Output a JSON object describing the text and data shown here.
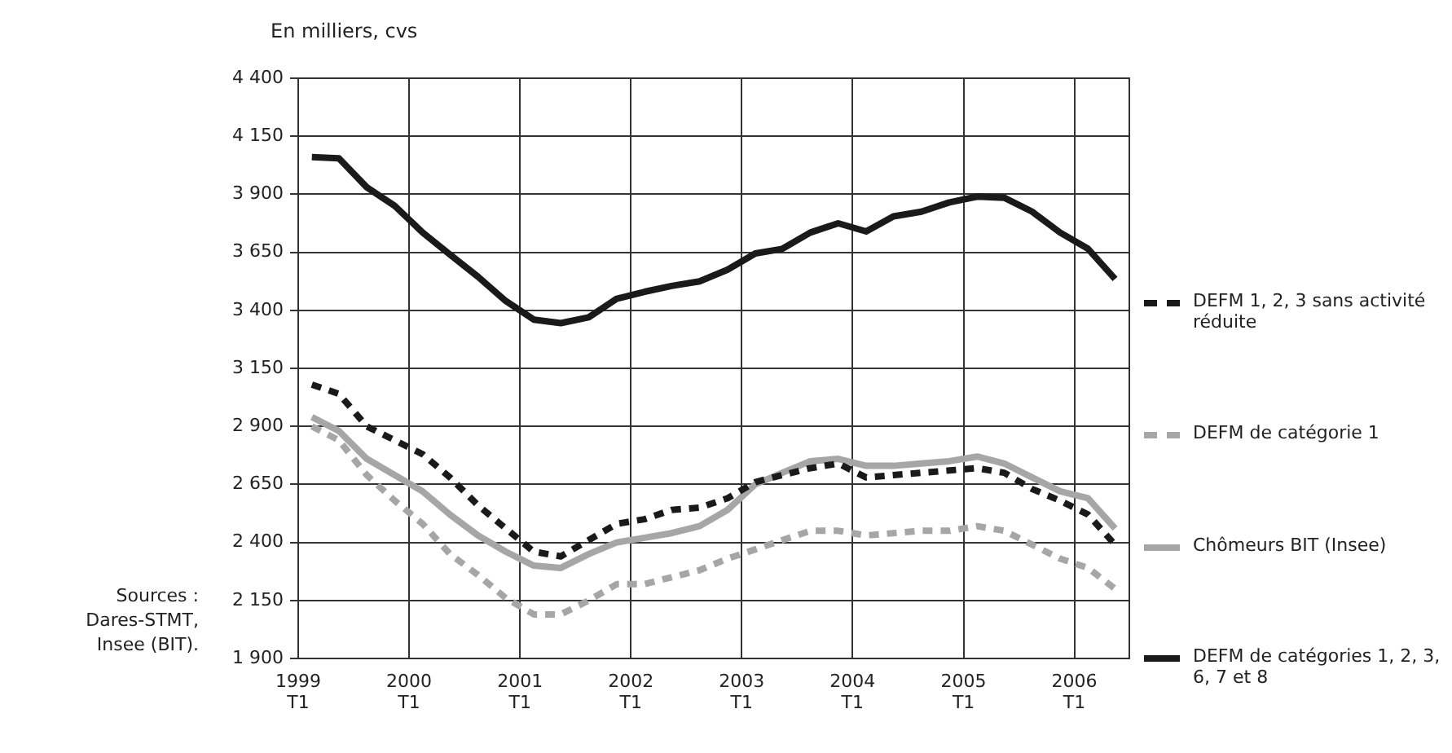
{
  "chart_data": {
    "type": "line",
    "ylabel": "En milliers, cvs",
    "x": [
      "1999-02-15",
      "1999-05-15",
      "1999-08-15",
      "1999-11-15",
      "2000-02-15",
      "2000-05-15",
      "2000-08-15",
      "2000-11-15",
      "2001-02-15",
      "2001-05-15",
      "2001-08-15",
      "2001-11-15",
      "2002-02-15",
      "2002-05-15",
      "2002-08-15",
      "2002-11-15",
      "2003-02-15",
      "2003-05-15",
      "2003-08-15",
      "2003-11-15",
      "2004-02-15",
      "2004-05-15",
      "2004-08-15",
      "2004-11-15",
      "2005-02-15",
      "2005-05-15",
      "2005-08-15",
      "2005-11-15",
      "2006-02-15",
      "2006-05-15"
    ],
    "xlim": [
      "1999-01-01",
      "2006-07-01"
    ],
    "xticks": [
      {
        "value": "1999-01-01",
        "label": "1999 T1"
      },
      {
        "value": "2000-01-01",
        "label": "2000 T1"
      },
      {
        "value": "2001-01-01",
        "label": "2001 T1"
      },
      {
        "value": "2002-01-01",
        "label": "2002 T1"
      },
      {
        "value": "2003-01-01",
        "label": "2003 T1"
      },
      {
        "value": "2004-01-01",
        "label": "2004 T1"
      },
      {
        "value": "2005-01-01",
        "label": "2005 T1"
      },
      {
        "value": "2006-01-01",
        "label": "2006 T1"
      }
    ],
    "ylim": [
      1900,
      4400
    ],
    "yticks": [
      {
        "value": 1900,
        "label": "1 900"
      },
      {
        "value": 2150,
        "label": "2 150"
      },
      {
        "value": 2400,
        "label": "2 400"
      },
      {
        "value": 2650,
        "label": "2 650"
      },
      {
        "value": 2900,
        "label": "2 900"
      },
      {
        "value": 3150,
        "label": "3 150"
      },
      {
        "value": 3400,
        "label": "3 400"
      },
      {
        "value": 3650,
        "label": "3 650"
      },
      {
        "value": 3900,
        "label": "3 900"
      },
      {
        "value": 4150,
        "label": "4 150"
      },
      {
        "value": 4400,
        "label": "4 400"
      }
    ],
    "grid": true,
    "legend": "right",
    "marker": "none",
    "series": [
      {
        "name": "DEFM 1, 2, 3 sans activité réduite",
        "color": "#1a1a1a",
        "line_style": "dashed",
        "values": [
          3080,
          3040,
          2900,
          2840,
          2780,
          2680,
          2560,
          2460,
          2360,
          2340,
          2410,
          2480,
          2500,
          2540,
          2550,
          2590,
          2660,
          2690,
          2720,
          2740,
          2680,
          2690,
          2700,
          2710,
          2720,
          2700,
          2630,
          2580,
          2520,
          2390
        ]
      },
      {
        "name": "DEFM de catégorie 1",
        "color": "#a6a6a6",
        "line_style": "dashed",
        "values": [
          2900,
          2840,
          2690,
          2580,
          2480,
          2350,
          2260,
          2160,
          2090,
          2090,
          2150,
          2220,
          2220,
          2250,
          2280,
          2330,
          2370,
          2410,
          2450,
          2450,
          2430,
          2440,
          2450,
          2450,
          2470,
          2450,
          2390,
          2330,
          2290,
          2200
        ]
      },
      {
        "name": "Chômeurs BIT (Insee)",
        "color": "#a6a6a6",
        "line_style": "solid",
        "values": [
          2940,
          2880,
          2760,
          2690,
          2620,
          2520,
          2430,
          2360,
          2300,
          2290,
          2350,
          2400,
          2420,
          2440,
          2470,
          2540,
          2650,
          2700,
          2750,
          2760,
          2730,
          2730,
          2740,
          2750,
          2770,
          2740,
          2680,
          2620,
          2590,
          2460
        ]
      },
      {
        "name": "DEFM de catégories 1, 2, 3, 6, 7 et 8",
        "color": "#1a1a1a",
        "line_style": "solid",
        "values": [
          4060,
          4055,
          3930,
          3850,
          3735,
          3640,
          3545,
          3440,
          3360,
          3345,
          3370,
          3450,
          3480,
          3505,
          3525,
          3575,
          3645,
          3665,
          3735,
          3775,
          3740,
          3805,
          3825,
          3865,
          3890,
          3885,
          3825,
          3735,
          3665,
          3535
        ]
      }
    ],
    "annotations": [
      "Sources : Dares-STMT, Insee (BIT)."
    ]
  }
}
